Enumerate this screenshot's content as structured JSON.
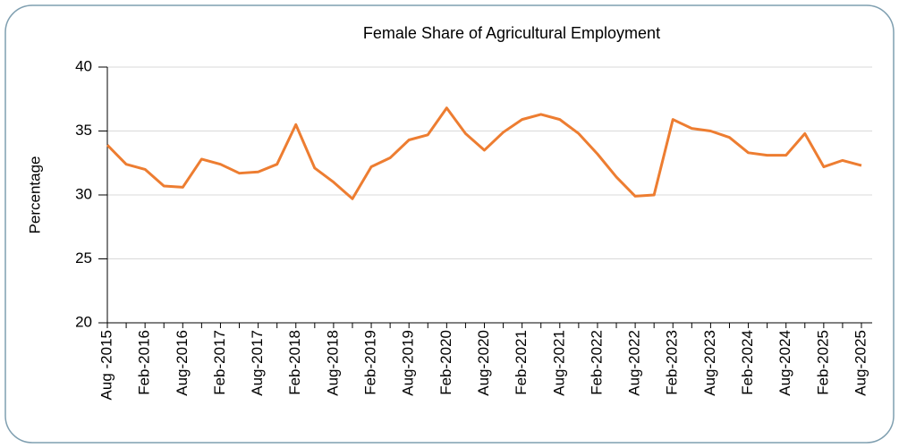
{
  "chart_data": {
    "type": "line",
    "title": "Female Share of Agricultural Employment",
    "y_label": "Percentage",
    "categories": [
      "Aug -2015",
      null,
      "Feb-2016",
      null,
      "Aug-2016",
      null,
      "Feb-2017",
      null,
      "Aug-2017",
      null,
      "Feb-2018",
      null,
      "Aug-2018",
      null,
      "Feb-2019",
      null,
      "Aug-2019",
      null,
      "Feb-2020",
      null,
      "Aug-2020",
      null,
      "Feb-2021",
      null,
      "Aug-2021",
      null,
      "Feb-2022",
      null,
      "Aug-2022",
      null,
      "Feb-2023",
      null,
      "Aug-2023",
      null,
      "Feb-2024",
      null,
      "Aug-2024",
      null,
      "Feb-2025",
      null,
      "Aug-2025"
    ],
    "series": [
      {
        "name": "Female share",
        "color": "#ed7d31",
        "values": [
          33.9,
          32.4,
          32.0,
          30.7,
          30.6,
          32.8,
          32.4,
          31.7,
          31.8,
          32.4,
          35.5,
          32.1,
          31.0,
          29.7,
          32.2,
          32.9,
          34.3,
          34.7,
          36.8,
          34.8,
          33.5,
          34.9,
          35.9,
          36.3,
          35.9,
          34.8,
          33.2,
          31.4,
          29.9,
          30.0,
          35.9,
          35.2,
          35.0,
          34.5,
          33.3,
          33.1,
          33.1,
          34.8,
          32.2,
          32.7,
          32.3
        ]
      }
    ],
    "ylim": [
      20,
      40
    ],
    "yticks": [
      20,
      25,
      30,
      35,
      40
    ],
    "grid": true
  }
}
